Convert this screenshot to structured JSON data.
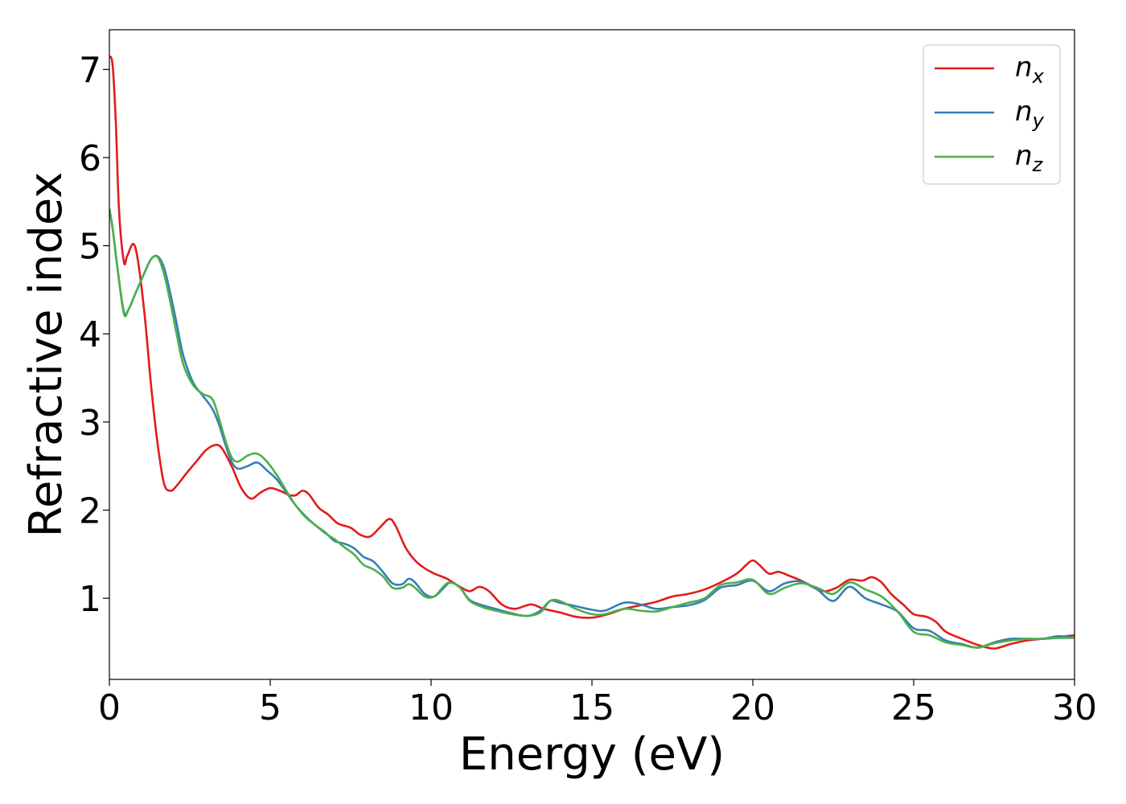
{
  "chart_data": {
    "type": "line",
    "title": "",
    "xlabel": "Energy (eV)",
    "ylabel": "Refractive index",
    "xlim": [
      0,
      30
    ],
    "ylim": [
      0.08,
      7.45
    ],
    "xticks": [
      0,
      5,
      10,
      15,
      20,
      25,
      30
    ],
    "yticks": [
      1,
      2,
      3,
      4,
      5,
      6,
      7
    ],
    "grid": false,
    "legend_position": "top-right",
    "series": [
      {
        "name": "n",
        "sub": "x",
        "color": "#e41a1c",
        "points": [
          [
            0,
            7.15
          ],
          [
            0.1,
            7.05
          ],
          [
            0.2,
            6.4
          ],
          [
            0.3,
            5.4
          ],
          [
            0.45,
            4.82
          ],
          [
            0.55,
            4.88
          ],
          [
            0.75,
            5.02
          ],
          [
            0.9,
            4.8
          ],
          [
            1.1,
            4.2
          ],
          [
            1.3,
            3.4
          ],
          [
            1.5,
            2.75
          ],
          [
            1.7,
            2.3
          ],
          [
            1.9,
            2.22
          ],
          [
            2.1,
            2.28
          ],
          [
            2.4,
            2.42
          ],
          [
            2.7,
            2.55
          ],
          [
            3.0,
            2.68
          ],
          [
            3.3,
            2.74
          ],
          [
            3.5,
            2.7
          ],
          [
            3.8,
            2.5
          ],
          [
            4.1,
            2.25
          ],
          [
            4.4,
            2.13
          ],
          [
            4.7,
            2.2
          ],
          [
            5.0,
            2.25
          ],
          [
            5.3,
            2.22
          ],
          [
            5.6,
            2.17
          ],
          [
            5.8,
            2.17
          ],
          [
            6.0,
            2.22
          ],
          [
            6.2,
            2.18
          ],
          [
            6.5,
            2.03
          ],
          [
            6.8,
            1.95
          ],
          [
            7.1,
            1.85
          ],
          [
            7.5,
            1.8
          ],
          [
            7.8,
            1.72
          ],
          [
            8.1,
            1.7
          ],
          [
            8.4,
            1.8
          ],
          [
            8.7,
            1.9
          ],
          [
            8.9,
            1.82
          ],
          [
            9.2,
            1.58
          ],
          [
            9.5,
            1.43
          ],
          [
            9.8,
            1.34
          ],
          [
            10.1,
            1.28
          ],
          [
            10.5,
            1.22
          ],
          [
            10.9,
            1.13
          ],
          [
            11.2,
            1.08
          ],
          [
            11.5,
            1.13
          ],
          [
            11.8,
            1.08
          ],
          [
            12.2,
            0.93
          ],
          [
            12.6,
            0.88
          ],
          [
            13.1,
            0.93
          ],
          [
            13.5,
            0.88
          ],
          [
            14.0,
            0.84
          ],
          [
            14.5,
            0.79
          ],
          [
            15.0,
            0.78
          ],
          [
            15.5,
            0.82
          ],
          [
            16.0,
            0.88
          ],
          [
            16.5,
            0.92
          ],
          [
            17.0,
            0.96
          ],
          [
            17.5,
            1.02
          ],
          [
            18.0,
            1.05
          ],
          [
            18.5,
            1.1
          ],
          [
            19.0,
            1.18
          ],
          [
            19.5,
            1.28
          ],
          [
            19.8,
            1.38
          ],
          [
            20.0,
            1.43
          ],
          [
            20.2,
            1.38
          ],
          [
            20.5,
            1.28
          ],
          [
            20.8,
            1.3
          ],
          [
            21.1,
            1.26
          ],
          [
            21.5,
            1.2
          ],
          [
            21.8,
            1.14
          ],
          [
            22.2,
            1.08
          ],
          [
            22.6,
            1.12
          ],
          [
            23.0,
            1.21
          ],
          [
            23.4,
            1.2
          ],
          [
            23.7,
            1.24
          ],
          [
            24.0,
            1.18
          ],
          [
            24.3,
            1.05
          ],
          [
            24.7,
            0.92
          ],
          [
            25.0,
            0.82
          ],
          [
            25.4,
            0.79
          ],
          [
            25.7,
            0.73
          ],
          [
            26.0,
            0.62
          ],
          [
            26.5,
            0.54
          ],
          [
            27.0,
            0.47
          ],
          [
            27.5,
            0.43
          ],
          [
            28.0,
            0.48
          ],
          [
            28.5,
            0.52
          ],
          [
            29.0,
            0.54
          ],
          [
            29.5,
            0.56
          ],
          [
            30.0,
            0.58
          ]
        ]
      },
      {
        "name": "n",
        "sub": "y",
        "color": "#377eb8",
        "points": [
          [
            0,
            5.42
          ],
          [
            0.1,
            5.2
          ],
          [
            0.25,
            4.75
          ],
          [
            0.45,
            4.25
          ],
          [
            0.6,
            4.28
          ],
          [
            0.8,
            4.45
          ],
          [
            1.1,
            4.7
          ],
          [
            1.3,
            4.85
          ],
          [
            1.5,
            4.88
          ],
          [
            1.7,
            4.75
          ],
          [
            1.9,
            4.45
          ],
          [
            2.1,
            4.1
          ],
          [
            2.3,
            3.75
          ],
          [
            2.6,
            3.45
          ],
          [
            2.9,
            3.3
          ],
          [
            3.2,
            3.15
          ],
          [
            3.4,
            2.98
          ],
          [
            3.6,
            2.75
          ],
          [
            3.8,
            2.55
          ],
          [
            4.0,
            2.47
          ],
          [
            4.3,
            2.5
          ],
          [
            4.6,
            2.54
          ],
          [
            4.9,
            2.45
          ],
          [
            5.2,
            2.35
          ],
          [
            5.5,
            2.2
          ],
          [
            5.8,
            2.05
          ],
          [
            6.1,
            1.93
          ],
          [
            6.4,
            1.83
          ],
          [
            6.7,
            1.75
          ],
          [
            7.0,
            1.65
          ],
          [
            7.3,
            1.62
          ],
          [
            7.6,
            1.57
          ],
          [
            7.9,
            1.47
          ],
          [
            8.2,
            1.42
          ],
          [
            8.5,
            1.3
          ],
          [
            8.8,
            1.17
          ],
          [
            9.1,
            1.16
          ],
          [
            9.3,
            1.22
          ],
          [
            9.5,
            1.18
          ],
          [
            9.8,
            1.05
          ],
          [
            10.1,
            1.02
          ],
          [
            10.4,
            1.12
          ],
          [
            10.6,
            1.18
          ],
          [
            10.9,
            1.12
          ],
          [
            11.2,
            0.98
          ],
          [
            11.6,
            0.92
          ],
          [
            12.0,
            0.88
          ],
          [
            12.5,
            0.83
          ],
          [
            13.0,
            0.8
          ],
          [
            13.4,
            0.86
          ],
          [
            13.7,
            0.97
          ],
          [
            14.0,
            0.95
          ],
          [
            14.5,
            0.91
          ],
          [
            15.0,
            0.87
          ],
          [
            15.4,
            0.86
          ],
          [
            16.0,
            0.95
          ],
          [
            16.5,
            0.93
          ],
          [
            17.0,
            0.88
          ],
          [
            17.5,
            0.9
          ],
          [
            18.0,
            0.92
          ],
          [
            18.5,
            0.98
          ],
          [
            19.0,
            1.12
          ],
          [
            19.5,
            1.15
          ],
          [
            20.0,
            1.2
          ],
          [
            20.5,
            1.08
          ],
          [
            21.0,
            1.17
          ],
          [
            21.5,
            1.19
          ],
          [
            22.0,
            1.1
          ],
          [
            22.5,
            0.97
          ],
          [
            23.0,
            1.13
          ],
          [
            23.5,
            1.0
          ],
          [
            24.0,
            0.93
          ],
          [
            24.5,
            0.85
          ],
          [
            25.0,
            0.66
          ],
          [
            25.5,
            0.63
          ],
          [
            26.0,
            0.52
          ],
          [
            26.5,
            0.48
          ],
          [
            27.0,
            0.44
          ],
          [
            27.5,
            0.5
          ],
          [
            28.0,
            0.54
          ],
          [
            28.5,
            0.54
          ],
          [
            29.0,
            0.54
          ],
          [
            29.5,
            0.57
          ],
          [
            30.0,
            0.55
          ]
        ]
      },
      {
        "name": "n",
        "sub": "z",
        "color": "#4daf4a",
        "points": [
          [
            0,
            5.42
          ],
          [
            0.1,
            5.2
          ],
          [
            0.25,
            4.75
          ],
          [
            0.45,
            4.23
          ],
          [
            0.6,
            4.28
          ],
          [
            0.8,
            4.45
          ],
          [
            1.1,
            4.7
          ],
          [
            1.3,
            4.85
          ],
          [
            1.5,
            4.87
          ],
          [
            1.7,
            4.68
          ],
          [
            1.9,
            4.35
          ],
          [
            2.1,
            3.98
          ],
          [
            2.3,
            3.65
          ],
          [
            2.6,
            3.42
          ],
          [
            2.9,
            3.32
          ],
          [
            3.2,
            3.26
          ],
          [
            3.4,
            3.05
          ],
          [
            3.6,
            2.8
          ],
          [
            3.8,
            2.6
          ],
          [
            4.0,
            2.55
          ],
          [
            4.3,
            2.62
          ],
          [
            4.6,
            2.64
          ],
          [
            4.9,
            2.55
          ],
          [
            5.2,
            2.4
          ],
          [
            5.5,
            2.22
          ],
          [
            5.8,
            2.05
          ],
          [
            6.1,
            1.92
          ],
          [
            6.4,
            1.83
          ],
          [
            6.7,
            1.74
          ],
          [
            7.0,
            1.67
          ],
          [
            7.3,
            1.58
          ],
          [
            7.6,
            1.5
          ],
          [
            7.9,
            1.38
          ],
          [
            8.2,
            1.33
          ],
          [
            8.5,
            1.25
          ],
          [
            8.8,
            1.12
          ],
          [
            9.1,
            1.12
          ],
          [
            9.3,
            1.16
          ],
          [
            9.5,
            1.12
          ],
          [
            9.8,
            1.02
          ],
          [
            10.1,
            1.02
          ],
          [
            10.4,
            1.14
          ],
          [
            10.6,
            1.18
          ],
          [
            10.9,
            1.12
          ],
          [
            11.2,
            0.97
          ],
          [
            11.6,
            0.9
          ],
          [
            12.0,
            0.86
          ],
          [
            12.5,
            0.82
          ],
          [
            13.0,
            0.8
          ],
          [
            13.4,
            0.84
          ],
          [
            13.7,
            0.97
          ],
          [
            14.0,
            0.97
          ],
          [
            14.5,
            0.88
          ],
          [
            15.0,
            0.82
          ],
          [
            15.4,
            0.82
          ],
          [
            16.0,
            0.88
          ],
          [
            16.5,
            0.86
          ],
          [
            17.0,
            0.85
          ],
          [
            17.5,
            0.9
          ],
          [
            18.0,
            0.95
          ],
          [
            18.5,
            1.0
          ],
          [
            19.0,
            1.15
          ],
          [
            19.5,
            1.18
          ],
          [
            20.0,
            1.21
          ],
          [
            20.5,
            1.05
          ],
          [
            21.0,
            1.12
          ],
          [
            21.5,
            1.17
          ],
          [
            22.0,
            1.12
          ],
          [
            22.5,
            1.05
          ],
          [
            23.0,
            1.18
          ],
          [
            23.5,
            1.1
          ],
          [
            24.0,
            1.02
          ],
          [
            24.5,
            0.85
          ],
          [
            25.0,
            0.62
          ],
          [
            25.5,
            0.58
          ],
          [
            26.0,
            0.5
          ],
          [
            26.5,
            0.47
          ],
          [
            27.0,
            0.44
          ],
          [
            27.5,
            0.49
          ],
          [
            28.0,
            0.52
          ],
          [
            28.5,
            0.54
          ],
          [
            29.0,
            0.54
          ],
          [
            29.5,
            0.55
          ],
          [
            30.0,
            0.55
          ]
        ]
      }
    ]
  }
}
